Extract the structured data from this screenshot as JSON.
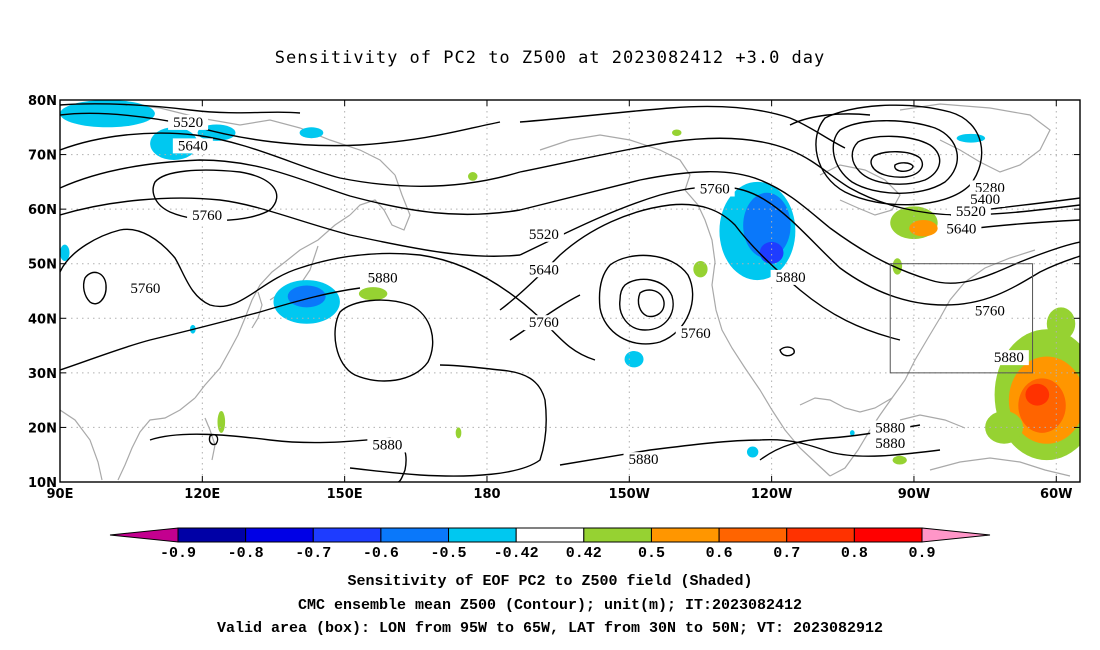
{
  "title": "Sensitivity of PC2 to Z500 at 2023082412 +3.0 day",
  "map": {
    "lon_range": [
      90,
      305
    ],
    "lat_range": [
      10,
      80
    ],
    "x_ticks": [
      {
        "lon": 90,
        "label": "90E"
      },
      {
        "lon": 120,
        "label": "120E"
      },
      {
        "lon": 150,
        "label": "150E"
      },
      {
        "lon": 180,
        "label": "180"
      },
      {
        "lon": 210,
        "label": "150W"
      },
      {
        "lon": 240,
        "label": "120W"
      },
      {
        "lon": 270,
        "label": "90W"
      },
      {
        "lon": 300,
        "label": "60W"
      }
    ],
    "y_ticks": [
      {
        "lat": 10,
        "label": "10N"
      },
      {
        "lat": 20,
        "label": "20N"
      },
      {
        "lat": 30,
        "label": "30N"
      },
      {
        "lat": 40,
        "label": "40N"
      },
      {
        "lat": 50,
        "label": "50N"
      },
      {
        "lat": 60,
        "label": "60N"
      },
      {
        "lat": 70,
        "label": "70N"
      },
      {
        "lat": 80,
        "label": "80N"
      }
    ],
    "gridlines": "dotted",
    "valid_box": {
      "lon_min": 265,
      "lon_max": 295,
      "lat_min": 30,
      "lat_max": 50
    },
    "contour_labels": [
      {
        "text": "5520",
        "lon": 117,
        "lat": 75.8
      },
      {
        "text": "5640",
        "lon": 118,
        "lat": 71.5
      },
      {
        "text": "5760",
        "lon": 121,
        "lat": 58.7
      },
      {
        "text": "5760",
        "lon": 108,
        "lat": 45.4
      },
      {
        "text": "5880",
        "lon": 158,
        "lat": 47.3
      },
      {
        "text": "5880",
        "lon": 159,
        "lat": 16.7
      },
      {
        "text": "5520",
        "lon": 192,
        "lat": 55.3
      },
      {
        "text": "5640",
        "lon": 192,
        "lat": 48.8
      },
      {
        "text": "5760",
        "lon": 192,
        "lat": 39.1
      },
      {
        "text": "5760",
        "lon": 228,
        "lat": 63.6
      },
      {
        "text": "5760",
        "lon": 224,
        "lat": 37.1
      },
      {
        "text": "5880",
        "lon": 244,
        "lat": 47.4
      },
      {
        "text": "5880",
        "lon": 213,
        "lat": 14.0
      },
      {
        "text": "5280",
        "lon": 286,
        "lat": 63.8
      },
      {
        "text": "5400",
        "lon": 285,
        "lat": 61.7
      },
      {
        "text": "5520",
        "lon": 282,
        "lat": 59.5
      },
      {
        "text": "5640",
        "lon": 280,
        "lat": 56.3
      },
      {
        "text": "5760",
        "lon": 286,
        "lat": 41.2
      },
      {
        "text": "5880",
        "lon": 290,
        "lat": 32.7
      },
      {
        "text": "5880",
        "lon": 265,
        "lat": 19.8
      },
      {
        "text": "5880",
        "lon": 265,
        "lat": 17.0
      }
    ],
    "shaded_regions": [
      {
        "value": -0.5,
        "lon": 100,
        "lat": 77.5,
        "rx": 10,
        "ry": 2.5
      },
      {
        "value": -0.45,
        "lon": 114,
        "lat": 72,
        "rx": 5,
        "ry": 3
      },
      {
        "value": -0.45,
        "lon": 123,
        "lat": 74,
        "rx": 4,
        "ry": 1.5
      },
      {
        "value": -0.45,
        "lon": 143,
        "lat": 74,
        "rx": 2.5,
        "ry": 1
      },
      {
        "value": -0.45,
        "lon": 91,
        "lat": 52,
        "rx": 1,
        "ry": 1.5
      },
      {
        "value": -0.5,
        "lon": 142,
        "lat": 43,
        "rx": 7,
        "ry": 4
      },
      {
        "value": -0.6,
        "lon": 142,
        "lat": 44,
        "rx": 4,
        "ry": 2
      },
      {
        "value": -0.45,
        "lon": 118,
        "lat": 38,
        "rx": 0.6,
        "ry": 0.8
      },
      {
        "value": 0.45,
        "lon": 156,
        "lat": 44.5,
        "rx": 3,
        "ry": 1.2
      },
      {
        "value": 0.45,
        "lon": 124,
        "lat": 21,
        "rx": 0.8,
        "ry": 2
      },
      {
        "value": 0.45,
        "lon": 177,
        "lat": 66,
        "rx": 1,
        "ry": 0.8
      },
      {
        "value": 0.45,
        "lon": 220,
        "lat": 74,
        "rx": 1,
        "ry": 0.6
      },
      {
        "value": 0.45,
        "lon": 174,
        "lat": 19,
        "rx": 0.6,
        "ry": 1
      },
      {
        "value": -0.45,
        "lon": 211,
        "lat": 32.5,
        "rx": 2,
        "ry": 1.5
      },
      {
        "value": -0.45,
        "lon": 237,
        "lat": 56,
        "rx": 8,
        "ry": 9
      },
      {
        "value": -0.55,
        "lon": 239,
        "lat": 57,
        "rx": 5,
        "ry": 6
      },
      {
        "value": -0.65,
        "lon": 240,
        "lat": 52,
        "rx": 2.5,
        "ry": 2
      },
      {
        "value": -0.45,
        "lon": 236,
        "lat": 15.5,
        "rx": 1.2,
        "ry": 1
      },
      {
        "value": -0.45,
        "lon": 257,
        "lat": 19,
        "rx": 0.5,
        "ry": 0.5
      },
      {
        "value": 0.45,
        "lon": 225,
        "lat": 49,
        "rx": 1.5,
        "ry": 1.5
      },
      {
        "value": 0.45,
        "lon": 266.5,
        "lat": 49.5,
        "rx": 1,
        "ry": 1.5
      },
      {
        "value": 0.45,
        "lon": 270,
        "lat": 57.5,
        "rx": 5,
        "ry": 3
      },
      {
        "value": 0.55,
        "lon": 272,
        "lat": 56.5,
        "rx": 3,
        "ry": 1.5
      },
      {
        "value": -0.45,
        "lon": 282,
        "lat": 73,
        "rx": 3,
        "ry": 0.8
      },
      {
        "value": 0.45,
        "lon": 298,
        "lat": 26,
        "rx": 11,
        "ry": 12
      },
      {
        "value": 0.55,
        "lon": 298,
        "lat": 25,
        "rx": 8,
        "ry": 8
      },
      {
        "value": 0.65,
        "lon": 297,
        "lat": 24,
        "rx": 5,
        "ry": 5
      },
      {
        "value": 0.75,
        "lon": 296,
        "lat": 26,
        "rx": 2.5,
        "ry": 2
      },
      {
        "value": 0.45,
        "lon": 289,
        "lat": 20,
        "rx": 4,
        "ry": 3
      },
      {
        "value": 0.45,
        "lon": 301,
        "lat": 39,
        "rx": 3,
        "ry": 3
      },
      {
        "value": 0.45,
        "lon": 267,
        "lat": 14,
        "rx": 1.5,
        "ry": 0.8
      }
    ]
  },
  "colorbar": {
    "ticks": [
      "-0.9",
      "-0.8",
      "-0.7",
      "-0.6",
      "-0.5",
      "-0.42",
      "0.42",
      "0.5",
      "0.6",
      "0.7",
      "0.8",
      "0.9"
    ],
    "colors": [
      "#c3008f",
      "#0000a6",
      "#0000e6",
      "#1e3cff",
      "#0a78fa",
      "#00c8f0",
      "#ffffff",
      "#96d232",
      "#ff9600",
      "#ff6400",
      "#ff3200",
      "#ff0000",
      "#ff96c8"
    ]
  },
  "captions": [
    "Sensitivity of EOF PC2 to Z500 field (Shaded)",
    "CMC ensemble mean Z500 (Contour); unit(m); IT:2023082412",
    "Valid area (box): LON from 95W to 65W, LAT from 30N to 50N; VT: 2023082912"
  ]
}
